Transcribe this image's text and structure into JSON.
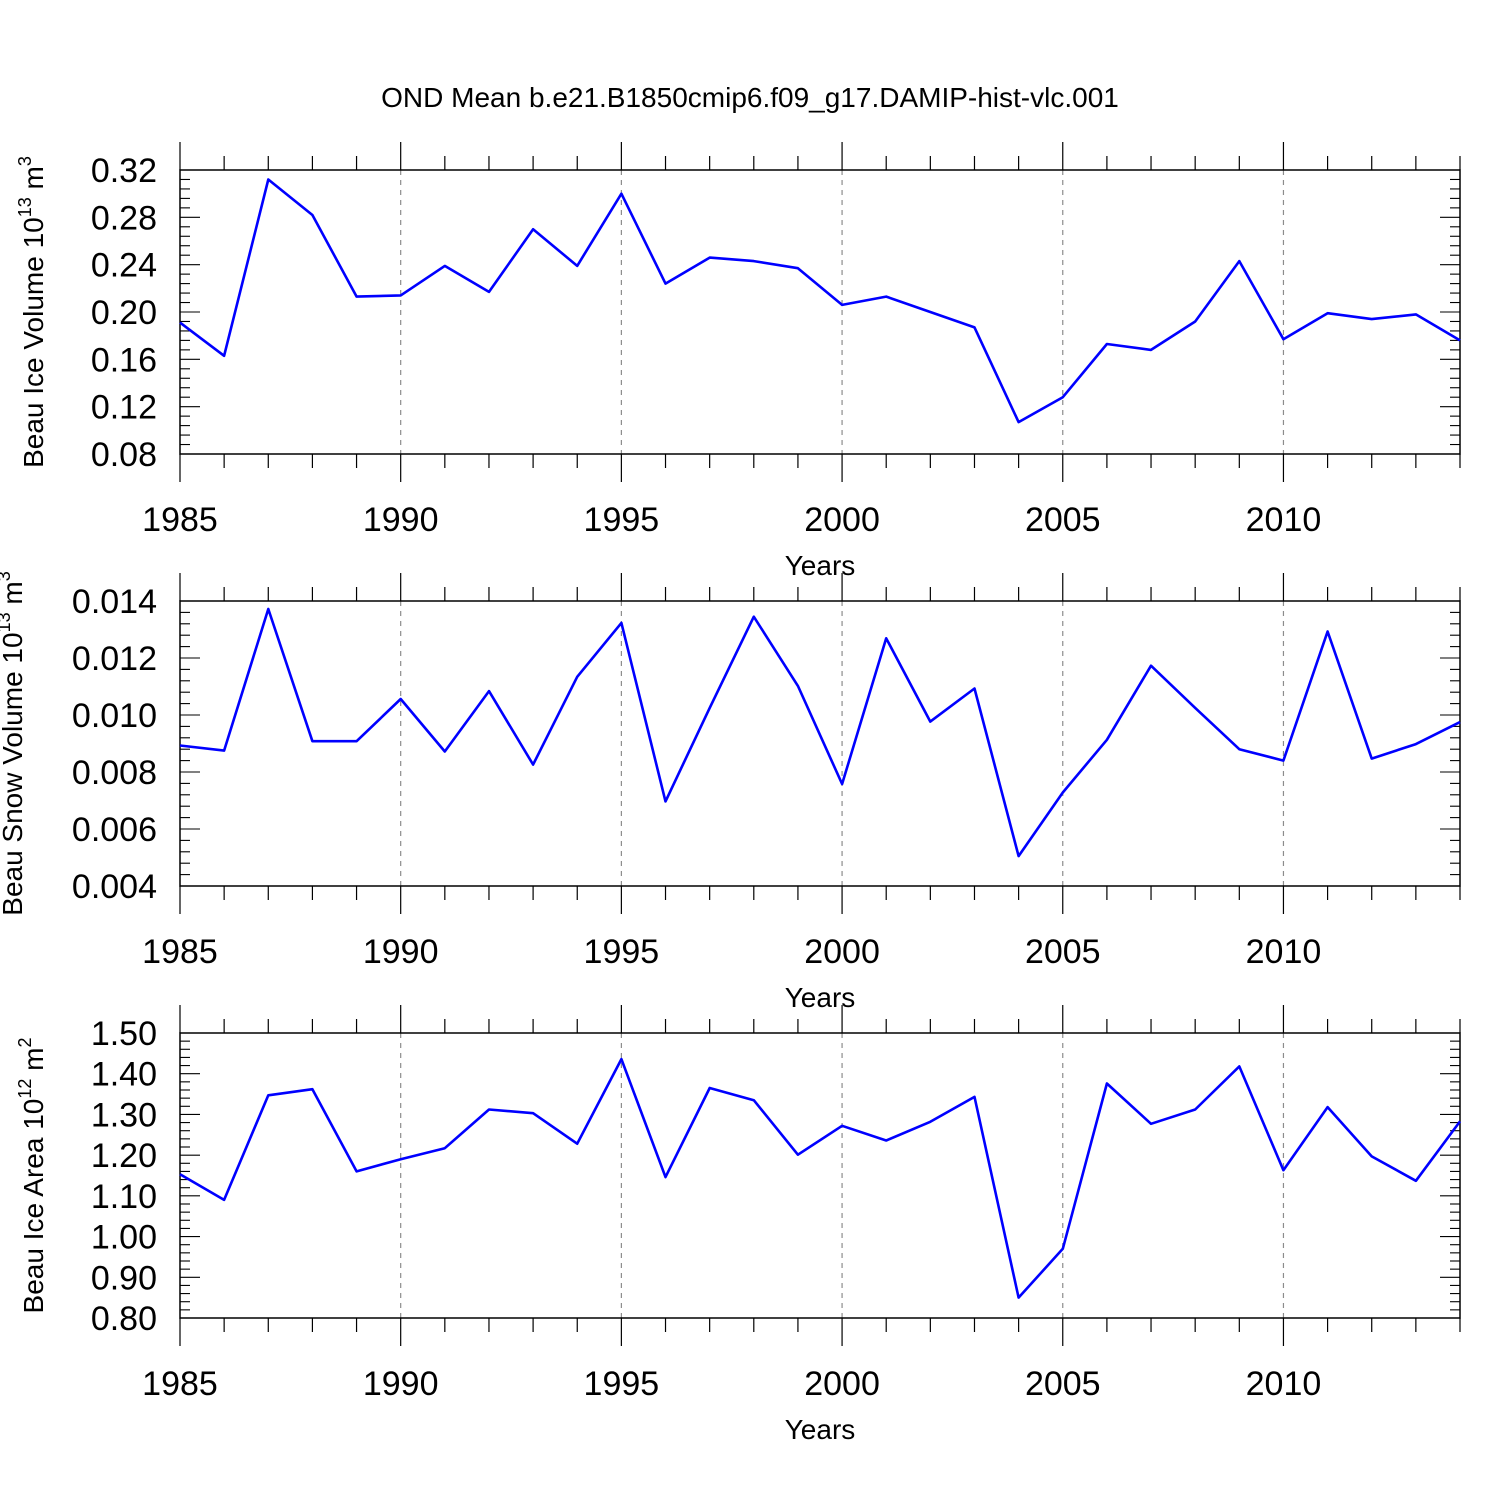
{
  "title": "OND Mean b.e21.B1850cmip6.f09_g17.DAMIP-hist-vlc.001",
  "colors": {
    "line": "#0000ff",
    "axis": "#000000",
    "grid": "#8c8c8c"
  },
  "chart_data": [
    {
      "type": "line",
      "name": "ice-volume",
      "ylabel_main": "Beau Ice Volume 10",
      "ylabel_exp": "13",
      "ylabel_unit": " m",
      "ylabel_unit_exp": "3",
      "xlabel": "Years",
      "xlim": [
        1985,
        2014
      ],
      "ylim": [
        0.08,
        0.32
      ],
      "yticks": [
        "0.08",
        "0.12",
        "0.16",
        "0.20",
        "0.24",
        "0.28",
        "0.32"
      ],
      "xticks": [
        "1985",
        "1990",
        "1995",
        "2000",
        "2005",
        "2010"
      ],
      "x": [
        1985,
        1986,
        1987,
        1988,
        1989,
        1990,
        1991,
        1992,
        1993,
        1994,
        1995,
        1996,
        1997,
        1998,
        1999,
        2000,
        2001,
        2002,
        2003,
        2004,
        2005,
        2006,
        2007,
        2008,
        2009,
        2010,
        2011,
        2012,
        2013,
        2014
      ],
      "values": [
        0.191,
        0.163,
        0.312,
        0.282,
        0.213,
        0.214,
        0.239,
        0.217,
        0.27,
        0.239,
        0.3,
        0.224,
        0.246,
        0.243,
        0.237,
        0.206,
        0.213,
        0.2,
        0.187,
        0.107,
        0.128,
        0.173,
        0.168,
        0.192,
        0.243,
        0.177,
        0.199,
        0.194,
        0.198,
        0.176
      ]
    },
    {
      "type": "line",
      "name": "snow-volume",
      "ylabel_main": "Beau Snow Volume 10",
      "ylabel_exp": "13",
      "ylabel_unit": " m",
      "ylabel_unit_exp": "3",
      "xlabel": "Years",
      "xlim": [
        1985,
        2014
      ],
      "ylim": [
        0.004,
        0.014
      ],
      "yticks": [
        "0.004",
        "0.006",
        "0.008",
        "0.010",
        "0.012",
        "0.014"
      ],
      "xticks": [
        "1985",
        "1990",
        "1995",
        "2000",
        "2005",
        "2010"
      ],
      "x": [
        1985,
        1986,
        1987,
        1988,
        1989,
        1990,
        1991,
        1992,
        1993,
        1994,
        1995,
        1996,
        1997,
        1998,
        1999,
        2000,
        2001,
        2002,
        2003,
        2004,
        2005,
        2006,
        2007,
        2008,
        2009,
        2010,
        2011,
        2012,
        2013,
        2014
      ],
      "values": [
        0.00893,
        0.00875,
        0.01372,
        0.00908,
        0.00908,
        0.01056,
        0.00872,
        0.01084,
        0.00826,
        0.01134,
        0.01323,
        0.00697,
        0.01025,
        0.01345,
        0.01102,
        0.00758,
        0.01269,
        0.00977,
        0.01093,
        0.00505,
        0.00728,
        0.00913,
        0.01173,
        0.01025,
        0.0088,
        0.0084,
        0.01293,
        0.00847,
        0.00898,
        0.00975
      ]
    },
    {
      "type": "line",
      "name": "ice-area",
      "ylabel_main": "Beau Ice Area 10",
      "ylabel_exp": "12",
      "ylabel_unit": " m",
      "ylabel_unit_exp": "2",
      "xlabel": "Years",
      "xlim": [
        1985,
        2014
      ],
      "ylim": [
        0.8,
        1.5
      ],
      "yticks": [
        "0.80",
        "0.90",
        "1.00",
        "1.10",
        "1.20",
        "1.30",
        "1.40",
        "1.50"
      ],
      "xticks": [
        "1985",
        "1990",
        "1995",
        "2000",
        "2005",
        "2010"
      ],
      "x": [
        1985,
        1986,
        1987,
        1988,
        1989,
        1990,
        1991,
        1992,
        1993,
        1994,
        1995,
        1996,
        1997,
        1998,
        1999,
        2000,
        2001,
        2002,
        2003,
        2004,
        2005,
        2006,
        2007,
        2008,
        2009,
        2010,
        2011,
        2012,
        2013,
        2014
      ],
      "values": [
        1.153,
        1.09,
        1.347,
        1.362,
        1.16,
        1.19,
        1.217,
        1.312,
        1.303,
        1.228,
        1.436,
        1.146,
        1.365,
        1.335,
        1.201,
        1.272,
        1.236,
        1.282,
        1.343,
        0.85,
        0.97,
        1.376,
        1.277,
        1.312,
        1.418,
        1.163,
        1.318,
        1.197,
        1.137,
        1.283
      ]
    }
  ]
}
